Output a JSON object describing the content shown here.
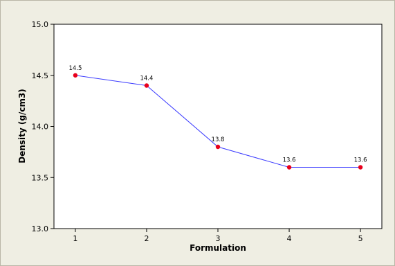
{
  "chart_data": {
    "type": "line",
    "title": "",
    "xlabel": "Formulation",
    "ylabel": "Density (g/cm3)",
    "x": [
      1,
      2,
      3,
      4,
      5
    ],
    "x_ticks": [
      "1",
      "2",
      "3",
      "4",
      "5"
    ],
    "xlim": [
      0.7,
      5.3
    ],
    "ylim": [
      13.0,
      15.0
    ],
    "y_ticks": [
      "13.0",
      "13.5",
      "14.0",
      "14.5",
      "15.0"
    ],
    "series": [
      {
        "values": [
          14.5,
          14.4,
          13.8,
          13.6,
          13.6
        ],
        "data_labels": [
          "14.5",
          "14.4",
          "13.8",
          "13.6",
          "13.6"
        ],
        "line_color": "#3b3bff",
        "marker_color": "#e8001c"
      }
    ],
    "grid": false,
    "legend": "none",
    "plot_background": "#ffffff",
    "figure_background": "#efeee3"
  }
}
